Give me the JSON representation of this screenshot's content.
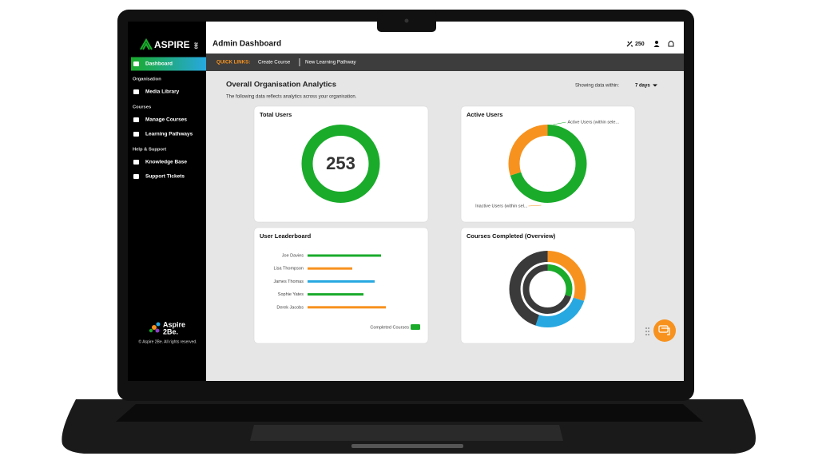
{
  "sidebar": {
    "logo": "ASPIRE",
    "logo_sub": "360",
    "sections": [
      {
        "links": [
          "Dashboard"
        ]
      },
      {
        "heading": "Organisation",
        "links": [
          "Media Library"
        ]
      },
      {
        "heading": "Courses",
        "links": [
          "Manage Courses",
          "Learning Pathways"
        ]
      },
      {
        "heading": "Help & Support",
        "links": [
          "Knowledge Base",
          "Support Tickets"
        ]
      }
    ],
    "brand": [
      "Aspire",
      "2Be."
    ],
    "copyright": "© Aspire 2Be. All rights reserved."
  },
  "header": {
    "title": "Admin Dashboard",
    "points": 250
  },
  "quick_links": {
    "label": "QUICK LINKS:",
    "links": [
      "Create Course",
      "New Learning Pathway"
    ]
  },
  "analytics": {
    "title": "Overall Organisation Analytics",
    "subtitle": "The following data reflects analytics across your organisation.",
    "range_label": "Showing data within:",
    "range_value": "7 days"
  },
  "chart_data": [
    {
      "type": "donut",
      "title": "Total Users",
      "values": [
        253
      ],
      "colors": [
        "#1aab2b"
      ],
      "center_label": true
    },
    {
      "type": "donut",
      "title": "Active Users",
      "labels": [
        "Active Users (within sele...",
        "Inactive Users (within sel..."
      ],
      "values": [
        70,
        30
      ],
      "colors": [
        "#1aab2b",
        "#f7921e"
      ]
    },
    {
      "type": "hbar",
      "title": "User Leaderboard",
      "categories": [
        "Joe Davies",
        "Lisa Thompson",
        "James Thomas",
        "Sophie Yates",
        "Derek Jacobs"
      ],
      "values": [
        92,
        56,
        84,
        70,
        98
      ],
      "colors": [
        "#1aab2b",
        "#f7921e",
        "#27a8e0",
        "#1aab2b",
        "#f7921e"
      ],
      "series_name": "Completed Courses",
      "legend_color": "#1aab2b"
    },
    {
      "type": "nested-donut",
      "title": "Courses Completed (Overview)",
      "rings": [
        {
          "values": [
            30,
            25,
            45
          ],
          "colors": [
            "#f7921e",
            "#27a8e0",
            "#3a3a3a"
          ]
        },
        {
          "values": [
            30,
            70
          ],
          "colors": [
            "#1aab2b",
            "#3a3a3a"
          ]
        }
      ]
    }
  ]
}
